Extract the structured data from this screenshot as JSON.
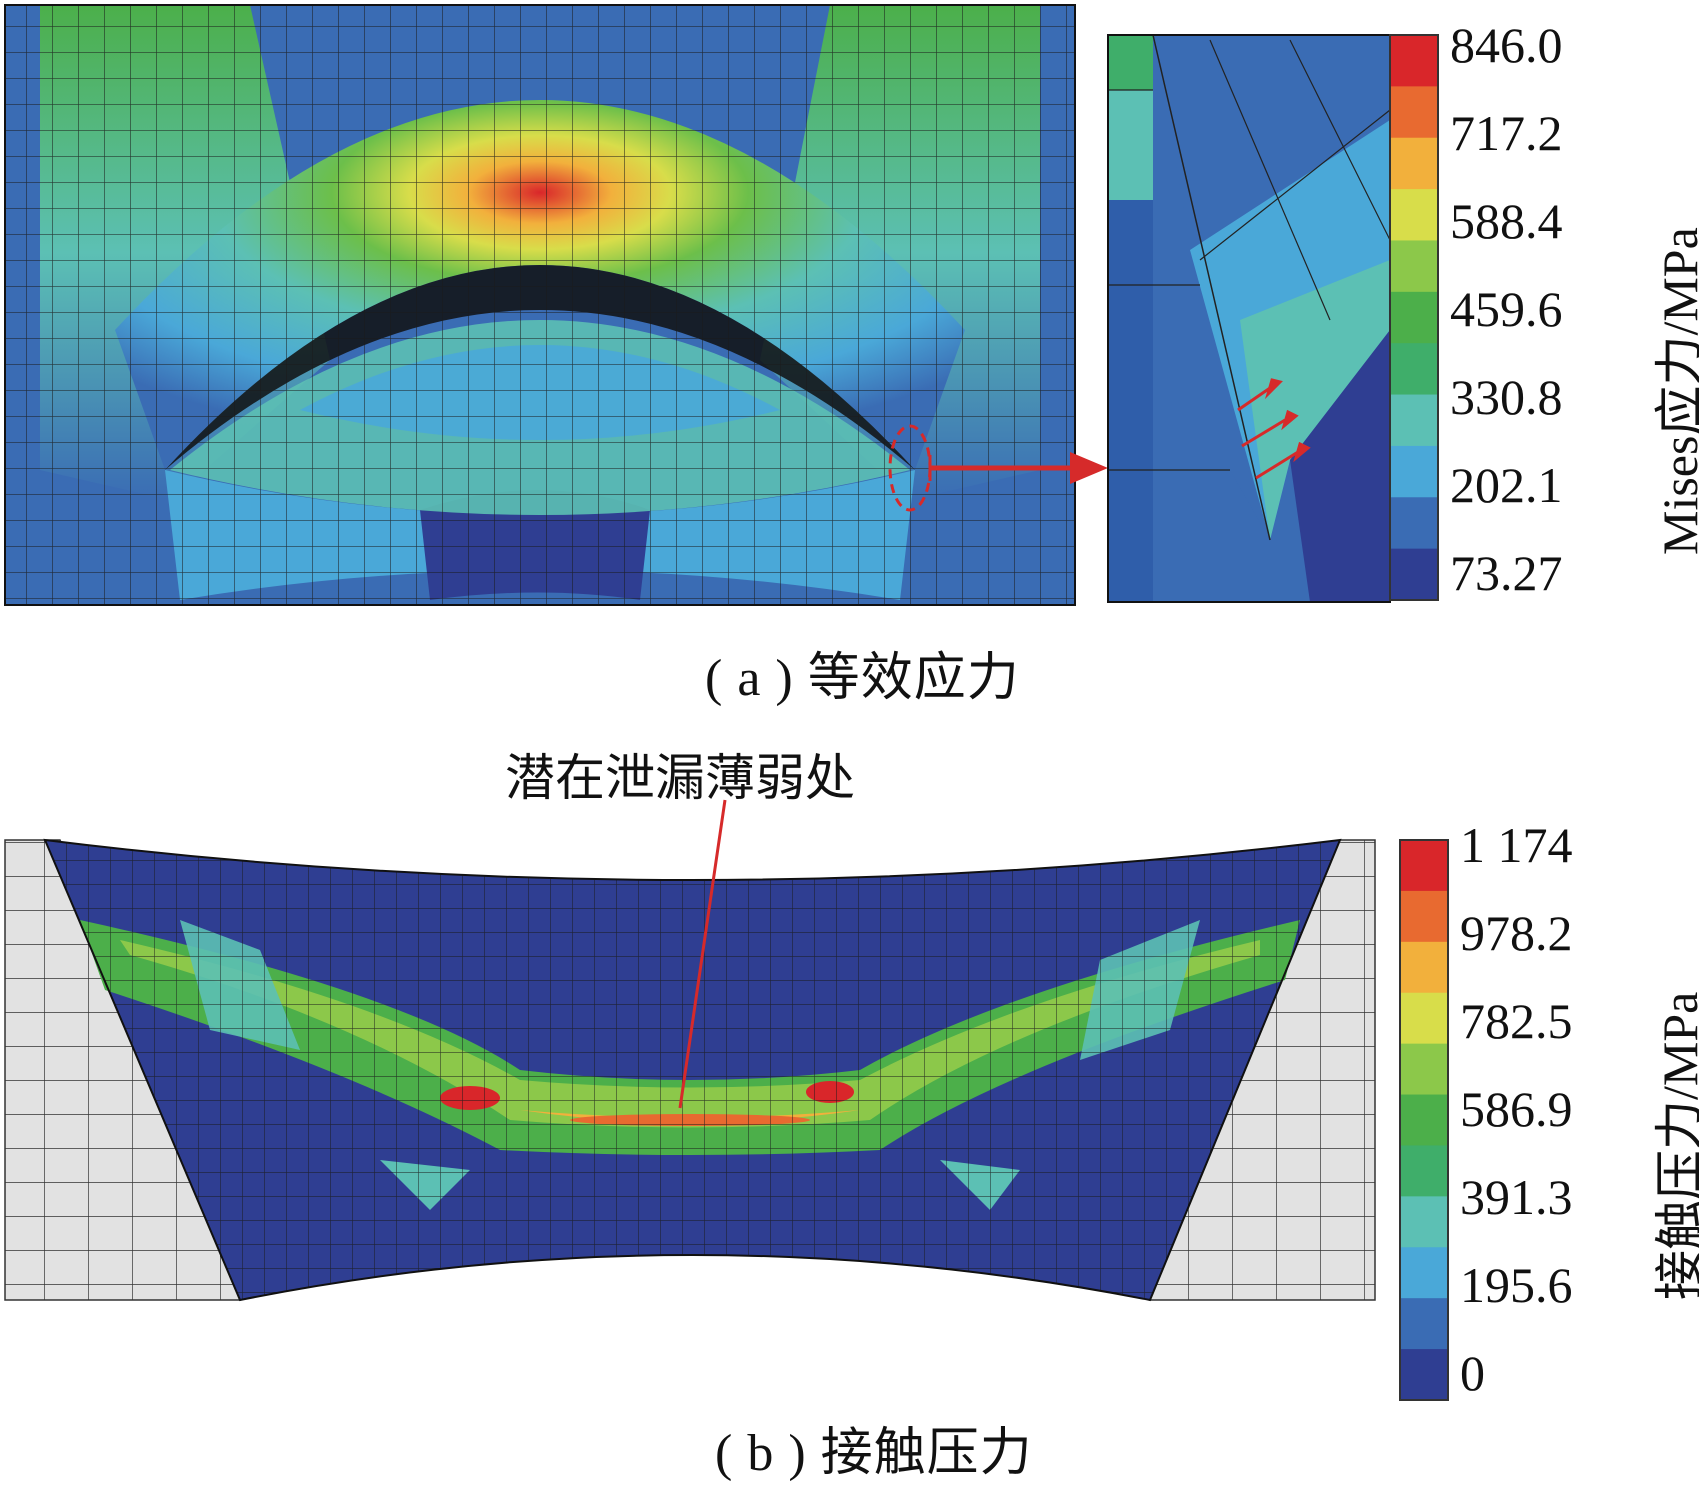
{
  "panel_a": {
    "caption": "( a ) 等效应力",
    "colorbar_title": "Mises应力/MPa",
    "colorbar_ticks": [
      "846.0",
      "717.2",
      "588.4",
      "459.6",
      "330.8",
      "202.1",
      "73.27"
    ],
    "colorbar_colors": [
      "#d9262a",
      "#e86a30",
      "#f2b03c",
      "#d8dd4a",
      "#8cc84a",
      "#4caf4a",
      "#3fae6a",
      "#5cc0b4",
      "#4aa8d8",
      "#3a6cb4",
      "#2f3e92"
    ]
  },
  "panel_b": {
    "caption": "( b ) 接触压力",
    "colorbar_title": "接触压力/MPa",
    "colorbar_ticks": [
      "1 174",
      "978.2",
      "782.5",
      "586.9",
      "391.3",
      "195.6",
      "0"
    ],
    "callout": "潜在泄漏薄弱处",
    "colorbar_colors": [
      "#d9262a",
      "#e86a30",
      "#f2b03c",
      "#d8dd4a",
      "#8cc84a",
      "#4caf4a",
      "#3fae6a",
      "#5cc0b4",
      "#4aa8d8",
      "#3a6cb4",
      "#2f3e92"
    ]
  }
}
